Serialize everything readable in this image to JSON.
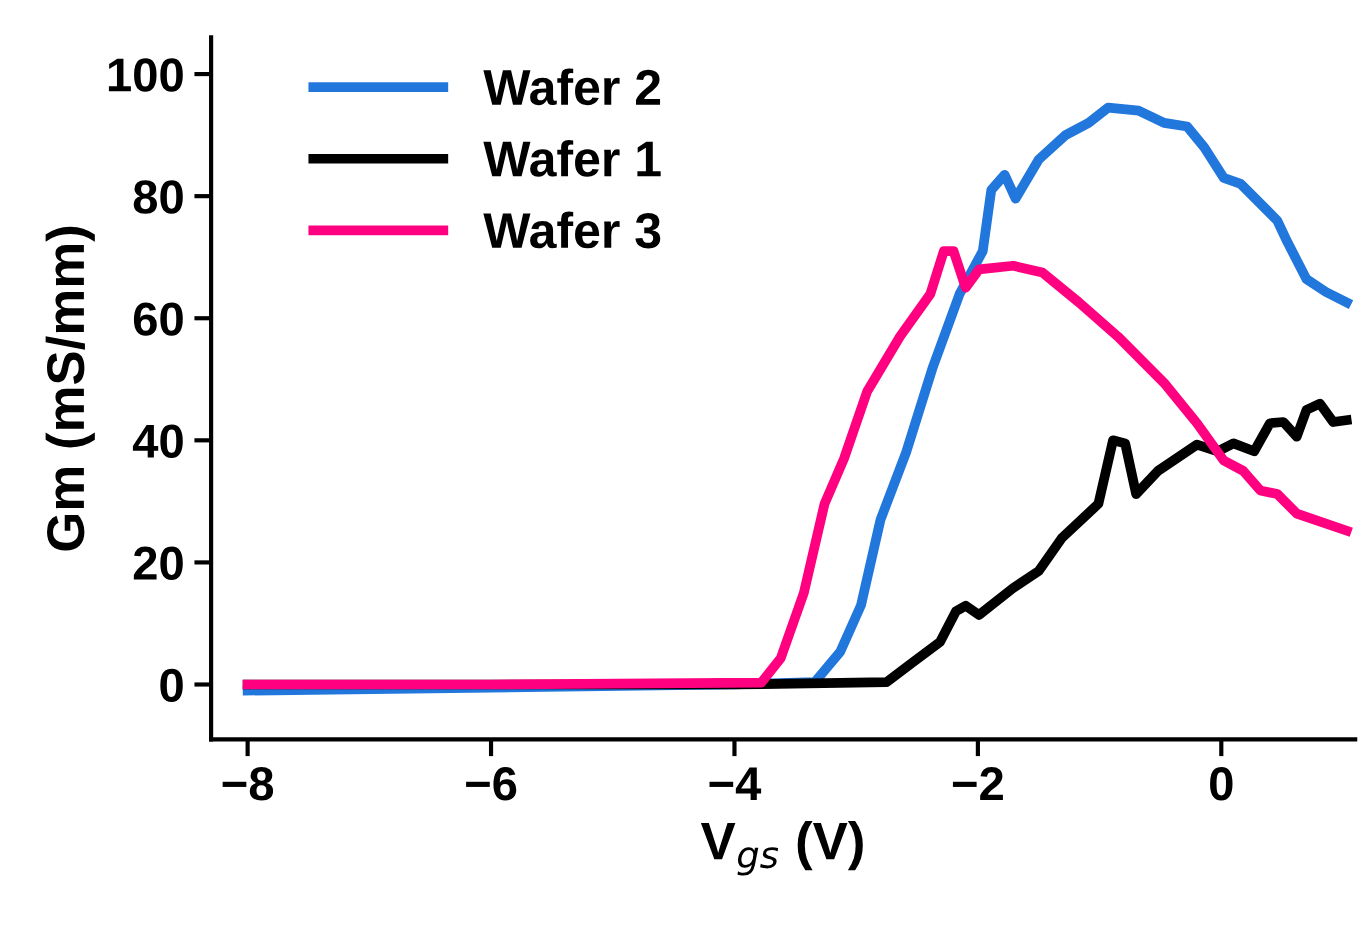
{
  "chart_data": {
    "type": "line",
    "xlabel": "V$_{gs}$ (V)",
    "ylabel": "Gm (mS/mm)",
    "xlim": [
      -8.3,
      1.1
    ],
    "ylim": [
      -9,
      106
    ],
    "xticks": [
      {
        "value": -8,
        "label": "−8"
      },
      {
        "value": -6,
        "label": "−6"
      },
      {
        "value": -4,
        "label": "−4"
      },
      {
        "value": -2,
        "label": "−2"
      },
      0
    ],
    "yticks": [
      0,
      20,
      40,
      60,
      80,
      100
    ],
    "grid": false,
    "legend": "top left",
    "line_style": "solid",
    "marker": "none",
    "series": [
      {
        "name": "Wafer 2",
        "color": "#2277dd",
        "x": [
          -8,
          -6,
          -4,
          -3.34,
          -3.13,
          -2.96,
          -2.8,
          -2.59,
          -2.37,
          -2.15,
          -1.96,
          -1.89,
          -1.78,
          -1.69,
          -1.5,
          -1.28,
          -1.09,
          -0.93,
          -0.68,
          -0.47,
          -0.28,
          -0.14,
          0.02,
          0.16,
          0.46,
          0.54,
          0.7,
          0.86,
          1.03
        ],
        "values": [
          -1,
          -0.5,
          0,
          0.4,
          5.4,
          13,
          27,
          38,
          52,
          64,
          71,
          81,
          83.5,
          79.6,
          86,
          90,
          92,
          94.5,
          94,
          92,
          91.4,
          88,
          83,
          82,
          76,
          72.6,
          66.4,
          64.3,
          62.6
        ]
      },
      {
        "name": "Wafer 1",
        "color": "#000000",
        "x": [
          -8,
          -6,
          -4,
          -2.75,
          -2.53,
          -2.31,
          -2.18,
          -2.1,
          -1.99,
          -1.71,
          -1.5,
          -1.31,
          -1.01,
          -0.89,
          -0.79,
          -0.7,
          -0.52,
          -0.2,
          -0.03,
          0.1,
          0.27,
          0.4,
          0.51,
          0.62,
          0.7,
          0.81,
          0.92,
          1.03
        ],
        "values": [
          0,
          0,
          0,
          0.4,
          3.7,
          7,
          12,
          12.9,
          11.4,
          15.8,
          18.6,
          24,
          29.6,
          40,
          39.5,
          31.2,
          35,
          39.3,
          38.2,
          39.5,
          38.2,
          42.8,
          43,
          40.6,
          45,
          46,
          43,
          43.3
        ]
      },
      {
        "name": "Wafer 3",
        "color": "#ff0080",
        "x": [
          -8,
          -6,
          -3.78,
          -3.62,
          -3.43,
          -3.26,
          -3.1,
          -2.91,
          -2.64,
          -2.39,
          -2.28,
          -2.2,
          -2.1,
          -1.99,
          -1.71,
          -1.47,
          -1.17,
          -0.85,
          -0.47,
          -0.2,
          0.02,
          0.18,
          0.32,
          0.46,
          0.62,
          1.03
        ],
        "values": [
          0,
          0,
          0.3,
          4.3,
          15,
          29.6,
          37,
          48,
          57,
          64,
          71,
          71,
          65,
          68,
          68.6,
          67.5,
          62.6,
          57,
          49.4,
          42.8,
          36.7,
          35,
          31.8,
          31.2,
          28,
          25.2
        ]
      }
    ]
  }
}
